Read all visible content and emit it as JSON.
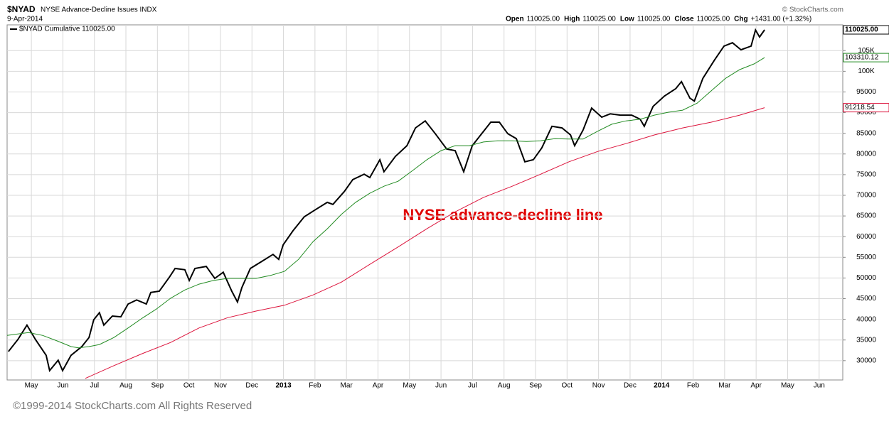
{
  "chart_data": {
    "type": "line",
    "symbol": "$NYAD",
    "title": "NYSE Advance-Decline Issues INDX",
    "date": "9-Apr-2014",
    "quote": [
      {
        "label": "Open",
        "value": "110025.00"
      },
      {
        "label": "High",
        "value": "110025.00"
      },
      {
        "label": "Low",
        "value": "110025.00"
      },
      {
        "label": "Close",
        "value": "110025.00"
      },
      {
        "label": "Chg",
        "value": "+1431.00 (+1.32%)"
      }
    ],
    "source": "© StockCharts.com",
    "annotation": "NYSE advance-decline line",
    "footer": "©1999-2014 StockCharts.com All Rights Reserved",
    "grid": true,
    "xlim": [
      -0.27,
      26.25
    ],
    "ylim": [
      25330,
      111230
    ],
    "xticks": [
      {
        "value": 0.5,
        "label": "May"
      },
      {
        "value": 1.5,
        "label": "Jun"
      },
      {
        "value": 2.5,
        "label": "Jul"
      },
      {
        "value": 3.5,
        "label": "Aug"
      },
      {
        "value": 4.5,
        "label": "Sep"
      },
      {
        "value": 5.5,
        "label": "Oct"
      },
      {
        "value": 6.5,
        "label": "Nov"
      },
      {
        "value": 7.5,
        "label": "Dec"
      },
      {
        "value": 8.5,
        "label": "2013"
      },
      {
        "value": 9.5,
        "label": "Feb"
      },
      {
        "value": 10.5,
        "label": "Mar"
      },
      {
        "value": 11.5,
        "label": "Apr"
      },
      {
        "value": 12.5,
        "label": "May"
      },
      {
        "value": 13.5,
        "label": "Jun"
      },
      {
        "value": 14.5,
        "label": "Jul"
      },
      {
        "value": 15.5,
        "label": "Aug"
      },
      {
        "value": 16.5,
        "label": "Sep"
      },
      {
        "value": 17.5,
        "label": "Oct"
      },
      {
        "value": 18.5,
        "label": "Nov"
      },
      {
        "value": 19.5,
        "label": "Dec"
      },
      {
        "value": 20.5,
        "label": "2014"
      },
      {
        "value": 21.5,
        "label": "Feb"
      },
      {
        "value": 22.5,
        "label": "Mar"
      },
      {
        "value": 23.5,
        "label": "Apr"
      },
      {
        "value": 24.5,
        "label": "May"
      },
      {
        "value": 25.5,
        "label": "Jun"
      }
    ],
    "yticks": [
      30000,
      35000,
      40000,
      45000,
      50000,
      55000,
      60000,
      65000,
      70000,
      75000,
      80000,
      85000,
      90000,
      95000,
      {
        "value": 100000,
        "label": "100K"
      },
      {
        "value": 105000,
        "label": "105K"
      }
    ],
    "series": [
      {
        "name": "$NYAD Cumulative 110025.00",
        "color": "#000000",
        "last_label": "110025.00",
        "x": [
          -0.23,
          0.07,
          0.36,
          0.63,
          0.97,
          1.08,
          1.35,
          1.49,
          1.76,
          2.1,
          2.33,
          2.48,
          2.66,
          2.8,
          3.07,
          3.34,
          3.57,
          3.84,
          4.15,
          4.29,
          4.56,
          4.88,
          5.06,
          5.37,
          5.51,
          5.69,
          6.05,
          6.32,
          6.59,
          6.86,
          7.04,
          7.18,
          7.45,
          7.81,
          8.17,
          8.35,
          8.49,
          8.8,
          9.16,
          9.53,
          9.89,
          10.07,
          10.43,
          10.7,
          11.06,
          11.24,
          11.56,
          11.69,
          12.05,
          12.42,
          12.69,
          13.0,
          13.32,
          13.68,
          13.95,
          14.22,
          14.49,
          14.76,
          15.08,
          15.35,
          15.62,
          15.89,
          16.16,
          16.43,
          16.7,
          17.02,
          17.34,
          17.61,
          17.74,
          18.01,
          18.28,
          18.6,
          18.87,
          19.19,
          19.55,
          19.82,
          19.95,
          20.23,
          20.59,
          20.95,
          21.13,
          21.4,
          21.54,
          21.81,
          22.17,
          22.48,
          22.75,
          23.02,
          23.34,
          23.48,
          23.61,
          23.77
        ],
        "values": [
          32200,
          35100,
          38600,
          35100,
          31300,
          27600,
          30100,
          27600,
          31300,
          33400,
          35600,
          39900,
          41600,
          38600,
          40800,
          40600,
          43700,
          44700,
          43700,
          46500,
          46800,
          50200,
          52300,
          52000,
          49400,
          52300,
          52800,
          49900,
          51400,
          46800,
          44200,
          47700,
          52300,
          54000,
          55700,
          54500,
          58000,
          61400,
          64800,
          66600,
          68300,
          67800,
          70900,
          73800,
          75100,
          74300,
          78600,
          75700,
          79400,
          82000,
          86300,
          88000,
          84900,
          81200,
          80800,
          75700,
          82000,
          84600,
          87700,
          87700,
          84900,
          83700,
          78100,
          78600,
          81500,
          86700,
          86300,
          84600,
          82000,
          85800,
          91100,
          88900,
          89700,
          89400,
          89400,
          88400,
          86700,
          91500,
          94000,
          95800,
          97500,
          93500,
          92800,
          98300,
          102600,
          106100,
          106900,
          105200,
          106100,
          110000,
          108300,
          110025
        ]
      },
      {
        "color": "#228b22",
        "last_label": "103310.12",
        "x": [
          -0.27,
          0.41,
          0.86,
          1.31,
          1.76,
          1.99,
          2.33,
          2.66,
          3.12,
          3.57,
          4.02,
          4.47,
          4.92,
          5.37,
          5.82,
          6.28,
          6.73,
          7.18,
          7.63,
          8.08,
          8.53,
          8.98,
          9.44,
          9.89,
          10.34,
          10.79,
          11.24,
          11.69,
          12.14,
          12.6,
          13.05,
          13.5,
          13.95,
          14.4,
          14.85,
          15.3,
          15.76,
          16.21,
          16.66,
          17.11,
          17.56,
          18.01,
          18.47,
          18.92,
          19.37,
          19.82,
          20.27,
          20.72,
          21.17,
          21.63,
          22.08,
          22.53,
          22.98,
          23.44,
          23.77
        ],
        "values": [
          36100,
          36800,
          36100,
          34800,
          33400,
          33100,
          33400,
          33900,
          35600,
          37900,
          40300,
          42500,
          45100,
          47100,
          48500,
          49400,
          49900,
          49900,
          49900,
          50600,
          51600,
          54500,
          58800,
          61900,
          65400,
          68300,
          70500,
          72200,
          73400,
          76000,
          78600,
          80800,
          82000,
          82000,
          82900,
          83200,
          83200,
          83000,
          83200,
          83700,
          83600,
          83600,
          85500,
          87200,
          88000,
          88400,
          89400,
          90100,
          90600,
          92300,
          95300,
          98300,
          100400,
          101800,
          103310
        ]
      },
      {
        "color": "#dc143c",
        "last_label": "91218.54",
        "x": [
          2.21,
          3.12,
          4.02,
          4.92,
          5.82,
          6.73,
          7.63,
          8.53,
          9.44,
          10.34,
          11.24,
          12.14,
          13.05,
          13.95,
          14.85,
          15.76,
          16.66,
          17.56,
          18.47,
          19.37,
          20.27,
          21.17,
          22.08,
          22.98,
          23.77
        ],
        "values": [
          25700,
          28800,
          31700,
          34400,
          37900,
          40400,
          42000,
          43400,
          45900,
          49000,
          53300,
          57500,
          61900,
          66000,
          69500,
          72200,
          75100,
          78100,
          80600,
          82500,
          84600,
          86300,
          87700,
          89400,
          91200
        ]
      }
    ]
  }
}
